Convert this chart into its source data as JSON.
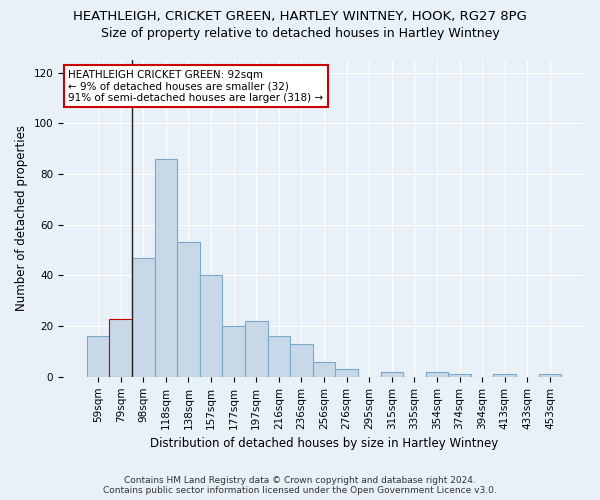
{
  "title": "HEATHLEIGH, CRICKET GREEN, HARTLEY WINTNEY, HOOK, RG27 8PG",
  "subtitle": "Size of property relative to detached houses in Hartley Wintney",
  "xlabel": "Distribution of detached houses by size in Hartley Wintney",
  "ylabel": "Number of detached properties",
  "footer_line1": "Contains HM Land Registry data © Crown copyright and database right 2024.",
  "footer_line2": "Contains public sector information licensed under the Open Government Licence v3.0.",
  "categories": [
    "59sqm",
    "79sqm",
    "98sqm",
    "118sqm",
    "138sqm",
    "157sqm",
    "177sqm",
    "197sqm",
    "216sqm",
    "236sqm",
    "256sqm",
    "276sqm",
    "295sqm",
    "315sqm",
    "335sqm",
    "354sqm",
    "374sqm",
    "394sqm",
    "413sqm",
    "433sqm",
    "453sqm"
  ],
  "values": [
    16,
    23,
    47,
    86,
    53,
    40,
    20,
    22,
    16,
    13,
    6,
    3,
    0,
    2,
    0,
    2,
    1,
    0,
    1,
    0,
    1
  ],
  "bar_color": "#c8d8e8",
  "bar_edge_color": "#7aaac8",
  "highlight_bar_index": 1,
  "highlight_bar_edge_color": "#cc0000",
  "vline_color": "#222222",
  "vline_x": 1.5,
  "annotation_text": "HEATHLEIGH CRICKET GREEN: 92sqm\n← 9% of detached houses are smaller (32)\n91% of semi-detached houses are larger (318) →",
  "annotation_box_color": "#ffffff",
  "annotation_box_edge_color": "#cc0000",
  "ylim": [
    0,
    125
  ],
  "yticks": [
    0,
    20,
    40,
    60,
    80,
    100,
    120
  ],
  "bg_color": "#e8f0f8",
  "plot_bg_color": "#e8f0f8",
  "grid_color": "#ffffff",
  "title_fontsize": 9.5,
  "subtitle_fontsize": 9,
  "tick_fontsize": 7.5,
  "ylabel_fontsize": 8.5,
  "xlabel_fontsize": 8.5,
  "annotation_fontsize": 7.5,
  "footer_fontsize": 6.5
}
